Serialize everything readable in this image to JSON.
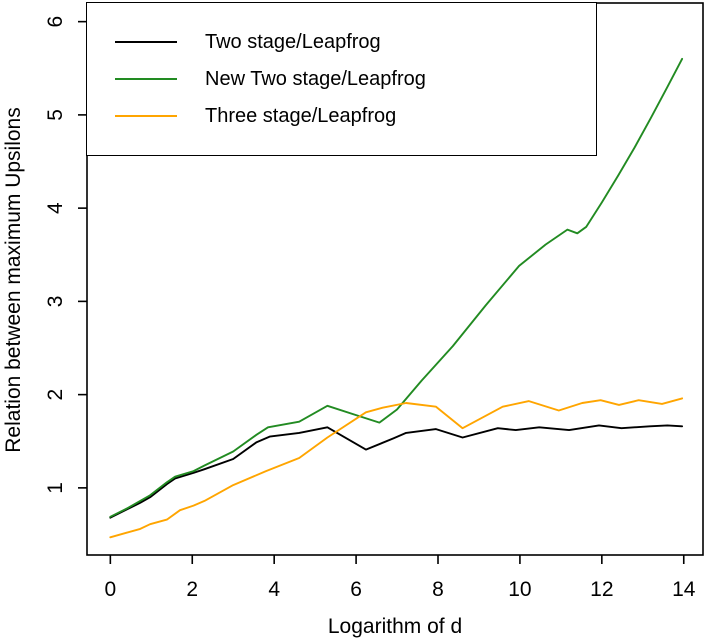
{
  "legend": {
    "items": [
      {
        "label": "Two stage/Leapfrog",
        "color": "#000000"
      },
      {
        "label": "New Two stage/Leapfrog",
        "color": "#228B22"
      },
      {
        "label": "Three stage/Leapfrog",
        "color": "#FFA500"
      }
    ]
  },
  "chart_data": {
    "type": "line",
    "title": "",
    "xlabel": "Logarithm of d",
    "ylabel": "Relation between maximum Upsilons",
    "x_ticks": [
      0,
      2,
      4,
      6,
      8,
      10,
      12,
      14
    ],
    "y_ticks": [
      1,
      2,
      3,
      4,
      5,
      6
    ],
    "xlim": [
      -0.57,
      14.47
    ],
    "ylim": [
      0.28,
      6.2
    ],
    "grid": false,
    "legend_position": "top-left-inside",
    "series": [
      {
        "name": "Two stage/Leapfrog",
        "color": "#000000",
        "points": [
          [
            0,
            0.68
          ],
          [
            0.41,
            0.77
          ],
          [
            0.73,
            0.84
          ],
          [
            0.97,
            0.9
          ],
          [
            1.38,
            1.04
          ],
          [
            1.58,
            1.1
          ],
          [
            2.03,
            1.16
          ],
          [
            2.3,
            1.2
          ],
          [
            3,
            1.31
          ],
          [
            3.57,
            1.49
          ],
          [
            3.89,
            1.55
          ],
          [
            4.61,
            1.59
          ],
          [
            5.3,
            1.65
          ],
          [
            6.24,
            1.41
          ],
          [
            6.91,
            1.53
          ],
          [
            7.22,
            1.59
          ],
          [
            7.95,
            1.63
          ],
          [
            8.6,
            1.54
          ],
          [
            9.46,
            1.64
          ],
          [
            9.9,
            1.62
          ],
          [
            10.47,
            1.65
          ],
          [
            11.2,
            1.62
          ],
          [
            11.93,
            1.67
          ],
          [
            12.48,
            1.64
          ],
          [
            13.17,
            1.66
          ],
          [
            13.6,
            1.67
          ],
          [
            13.96,
            1.66
          ]
        ]
      },
      {
        "name": "New Two stage/Leapfrog",
        "color": "#228B22",
        "points": [
          [
            0,
            0.69
          ],
          [
            0.41,
            0.78
          ],
          [
            0.73,
            0.86
          ],
          [
            0.97,
            0.92
          ],
          [
            1.38,
            1.06
          ],
          [
            1.58,
            1.12
          ],
          [
            2.03,
            1.18
          ],
          [
            2.3,
            1.24
          ],
          [
            3,
            1.39
          ],
          [
            3.57,
            1.57
          ],
          [
            3.85,
            1.65
          ],
          [
            4.61,
            1.71
          ],
          [
            5.3,
            1.88
          ],
          [
            6,
            1.78
          ],
          [
            6.57,
            1.7
          ],
          [
            7,
            1.84
          ],
          [
            7.6,
            2.15
          ],
          [
            8.36,
            2.52
          ],
          [
            9.17,
            2.96
          ],
          [
            9.98,
            3.38
          ],
          [
            10.63,
            3.61
          ],
          [
            11.16,
            3.77
          ],
          [
            11.4,
            3.73
          ],
          [
            11.62,
            3.8
          ],
          [
            12,
            4.06
          ],
          [
            12.4,
            4.35
          ],
          [
            12.8,
            4.65
          ],
          [
            13.2,
            4.97
          ],
          [
            13.6,
            5.3
          ],
          [
            13.96,
            5.6
          ]
        ]
      },
      {
        "name": "Three stage/Leapfrog",
        "color": "#FFA500",
        "points": [
          [
            0,
            0.47
          ],
          [
            0.41,
            0.52
          ],
          [
            0.73,
            0.56
          ],
          [
            0.97,
            0.61
          ],
          [
            1.38,
            0.66
          ],
          [
            1.7,
            0.76
          ],
          [
            2.03,
            0.81
          ],
          [
            2.3,
            0.86
          ],
          [
            3,
            1.03
          ],
          [
            3.8,
            1.18
          ],
          [
            4.61,
            1.32
          ],
          [
            5.3,
            1.54
          ],
          [
            6.24,
            1.81
          ],
          [
            6.65,
            1.86
          ],
          [
            7.22,
            1.91
          ],
          [
            7.95,
            1.87
          ],
          [
            8.6,
            1.64
          ],
          [
            9.58,
            1.87
          ],
          [
            10.22,
            1.93
          ],
          [
            10.95,
            1.83
          ],
          [
            11.52,
            1.91
          ],
          [
            11.97,
            1.94
          ],
          [
            12.42,
            1.89
          ],
          [
            12.9,
            1.94
          ],
          [
            13.47,
            1.9
          ],
          [
            13.96,
            1.96
          ]
        ]
      }
    ]
  }
}
